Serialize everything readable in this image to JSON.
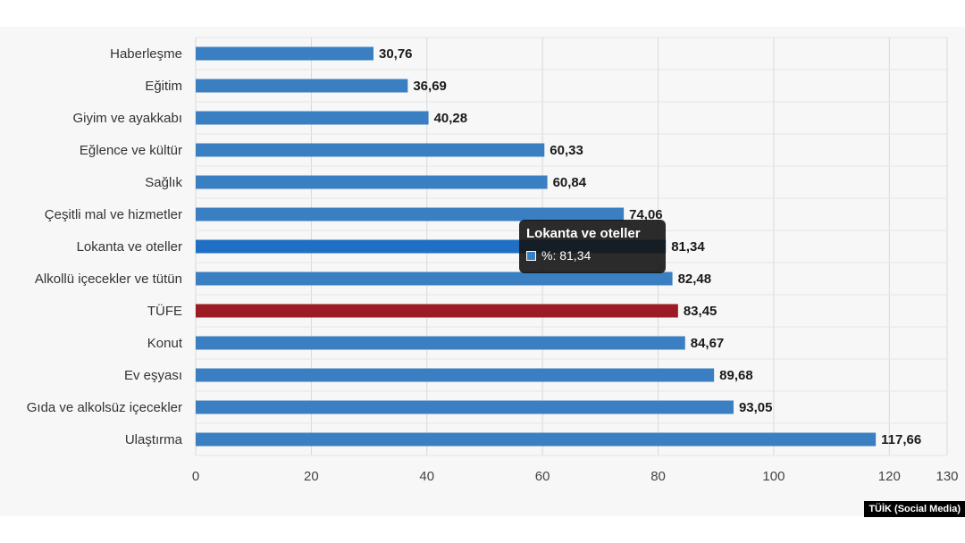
{
  "chart_data": {
    "type": "bar",
    "orientation": "horizontal",
    "categories": [
      "Haberleşme",
      "Eğitim",
      "Giyim ve ayakkabı",
      "Eğlence ve kültür",
      "Sağlık",
      "Çeşitli mal ve hizmetler",
      "Lokanta ve oteller",
      "Alkollü içecekler ve tütün",
      "TÜFE",
      "Konut",
      "Ev eşyası",
      "Gıda ve alkolsüz içecekler",
      "Ulaştırma"
    ],
    "values": [
      30.76,
      36.69,
      40.28,
      60.33,
      60.84,
      74.06,
      81.34,
      82.48,
      83.45,
      84.67,
      89.68,
      93.05,
      117.66
    ],
    "value_labels": [
      "30,76",
      "36,69",
      "40,28",
      "60,33",
      "60,84",
      "74,06",
      "81,34",
      "82,48",
      "83,45",
      "84,67",
      "89,68",
      "93,05",
      "117,66"
    ],
    "xlim": [
      0,
      130
    ],
    "x_ticks": [
      0,
      20,
      40,
      60,
      80,
      100,
      120,
      130
    ],
    "grid": true,
    "bar_color": "#3a7fc1",
    "highlight_bar": {
      "category": "TÜFE",
      "color": "#9b1c24"
    },
    "hover_bar": {
      "category": "Lokanta ve oteller",
      "color": "#1f6fc4"
    }
  },
  "tooltip": {
    "title": "Lokanta ve oteller",
    "value_text": "%: 81,34",
    "swatch_color": "#3a7fc1"
  },
  "credit": "TÜİK (Social Media)"
}
